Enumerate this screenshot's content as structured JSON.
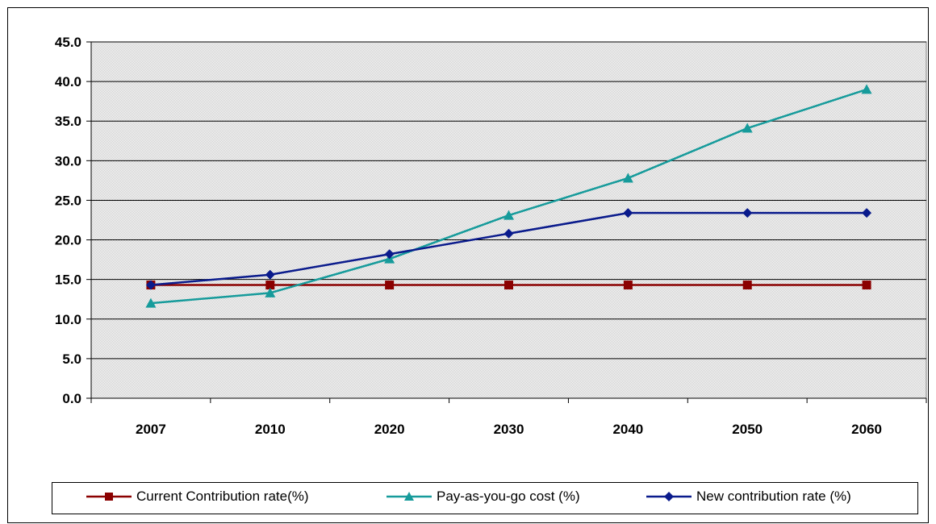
{
  "chart_data": {
    "type": "line",
    "categories": [
      "2007",
      "2010",
      "2020",
      "2030",
      "2040",
      "2050",
      "2060"
    ],
    "ylim": [
      0,
      45
    ],
    "yticks": [
      "0.0",
      "5.0",
      "10.0",
      "15.0",
      "20.0",
      "25.0",
      "30.0",
      "35.0",
      "40.0",
      "45.0"
    ],
    "grid": true,
    "legend_position": "bottom",
    "series": [
      {
        "name": "Current Contribution rate(%)",
        "marker": "square",
        "color": "#8B0000",
        "values": [
          14.3,
          14.3,
          14.3,
          14.3,
          14.3,
          14.3,
          14.3
        ]
      },
      {
        "name": "Pay-as-you-go cost (%)",
        "marker": "triangle",
        "color": "#169B9B",
        "values": [
          12.0,
          13.3,
          17.6,
          23.1,
          27.8,
          34.1,
          39.0
        ]
      },
      {
        "name": "New contribution rate (%)",
        "marker": "diamond",
        "color": "#0A1B8C",
        "values": [
          14.3,
          15.6,
          18.2,
          20.8,
          23.4,
          23.4,
          23.4
        ]
      }
    ]
  }
}
